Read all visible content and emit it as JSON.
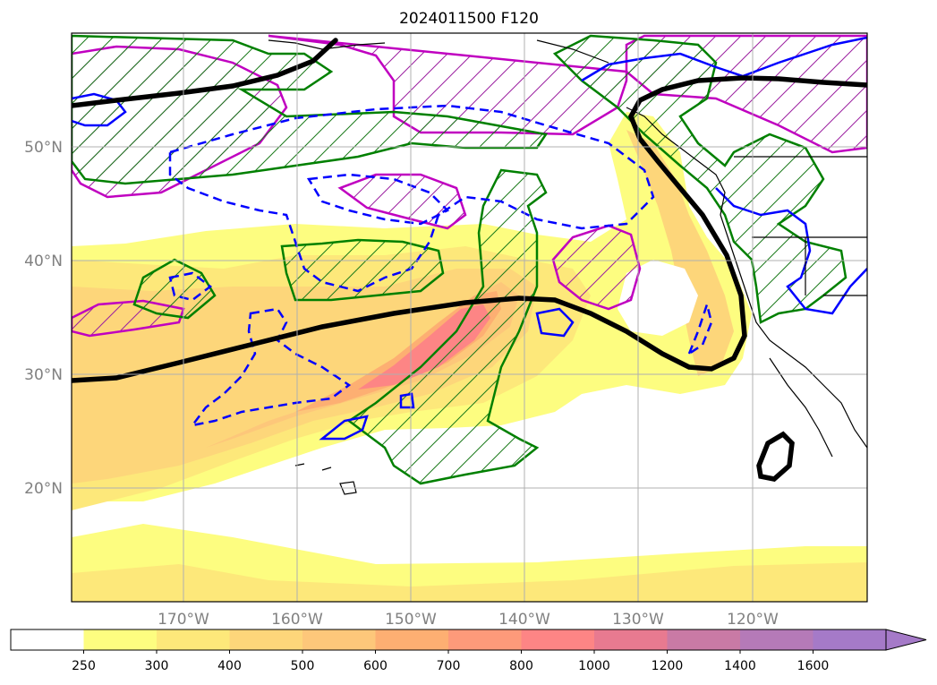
{
  "title": "2024011500 F120",
  "map": {
    "projection": "cylindrical",
    "lon_range": [
      -180,
      -110
    ],
    "lat_range": [
      10,
      60
    ],
    "lat_ticks": [
      "20°N",
      "30°N",
      "40°N",
      "50°N"
    ],
    "lon_ticks": [
      "170°W",
      "160°W",
      "150°W",
      "140°W",
      "130°W",
      "120°W"
    ],
    "grid": true,
    "colors": {
      "jet_axis": "#000000",
      "solid_green": "#008000",
      "dashed_blue": "#0000ff",
      "magenta": "#c000c0",
      "coastline": "#000000",
      "gridline": "#b0b0b0"
    }
  },
  "colorbar": {
    "levels": [
      "250",
      "300",
      "400",
      "500",
      "600",
      "700",
      "800",
      "1000",
      "1200",
      "1400",
      "1600"
    ],
    "colors": [
      "#ffffff",
      "#fdfd80",
      "#fde87a",
      "#fdd67a",
      "#fdc77a",
      "#fdaf72",
      "#fd9a7a",
      "#fd8585",
      "#e87a90",
      "#c97aa5",
      "#b57ab8",
      "#a57ac8"
    ],
    "extend": "max"
  }
}
